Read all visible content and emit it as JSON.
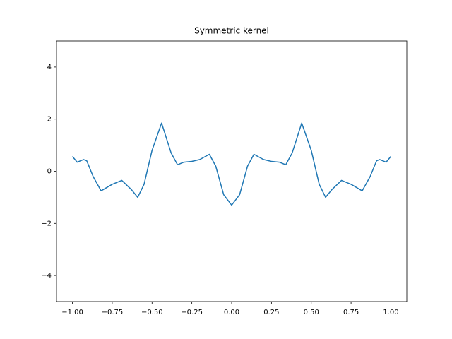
{
  "chart_data": {
    "type": "line",
    "title": "Symmetric kernel",
    "x": [
      -1.0,
      -0.97,
      -0.93,
      -0.91,
      -0.87,
      -0.82,
      -0.75,
      -0.69,
      -0.63,
      -0.59,
      -0.55,
      -0.5,
      -0.44,
      -0.38,
      -0.34,
      -0.3,
      -0.25,
      -0.2,
      -0.14,
      -0.1,
      -0.05,
      0.0,
      0.05,
      0.1,
      0.14,
      0.2,
      0.25,
      0.3,
      0.34,
      0.38,
      0.44,
      0.5,
      0.55,
      0.59,
      0.63,
      0.69,
      0.75,
      0.82,
      0.87,
      0.91,
      0.93,
      0.97,
      1.0
    ],
    "series": [
      {
        "color": "#1f77b4",
        "values": [
          0.57,
          0.35,
          0.45,
          0.4,
          -0.2,
          -0.75,
          -0.5,
          -0.35,
          -0.7,
          -1.0,
          -0.5,
          0.8,
          1.85,
          0.7,
          0.25,
          0.35,
          0.38,
          0.45,
          0.65,
          0.2,
          -0.9,
          -1.3,
          -0.9,
          0.2,
          0.65,
          0.45,
          0.38,
          0.35,
          0.25,
          0.7,
          1.85,
          0.8,
          -0.5,
          -1.0,
          -0.7,
          -0.35,
          -0.5,
          -0.75,
          -0.2,
          0.4,
          0.45,
          0.35,
          0.57
        ]
      }
    ],
    "xlim": [
      -1.1,
      1.1
    ],
    "xticks": [
      {
        "value": -1,
        "label": "−1.00"
      },
      {
        "value": -0.75,
        "label": "−0.75"
      },
      {
        "value": -0.5,
        "label": "−0.50"
      },
      {
        "value": -0.25,
        "label": "−0.25"
      },
      {
        "value": 0,
        "label": "0.00"
      },
      {
        "value": 0.25,
        "label": "0.25"
      },
      {
        "value": 0.5,
        "label": "0.50"
      },
      {
        "value": 0.75,
        "label": "0.75"
      },
      {
        "value": 1,
        "label": "1.00"
      }
    ],
    "ylim": [
      -5,
      5
    ],
    "yticks": [
      {
        "value": -4,
        "label": "−4"
      },
      {
        "value": -2,
        "label": "−2"
      },
      0,
      2,
      4
    ]
  }
}
